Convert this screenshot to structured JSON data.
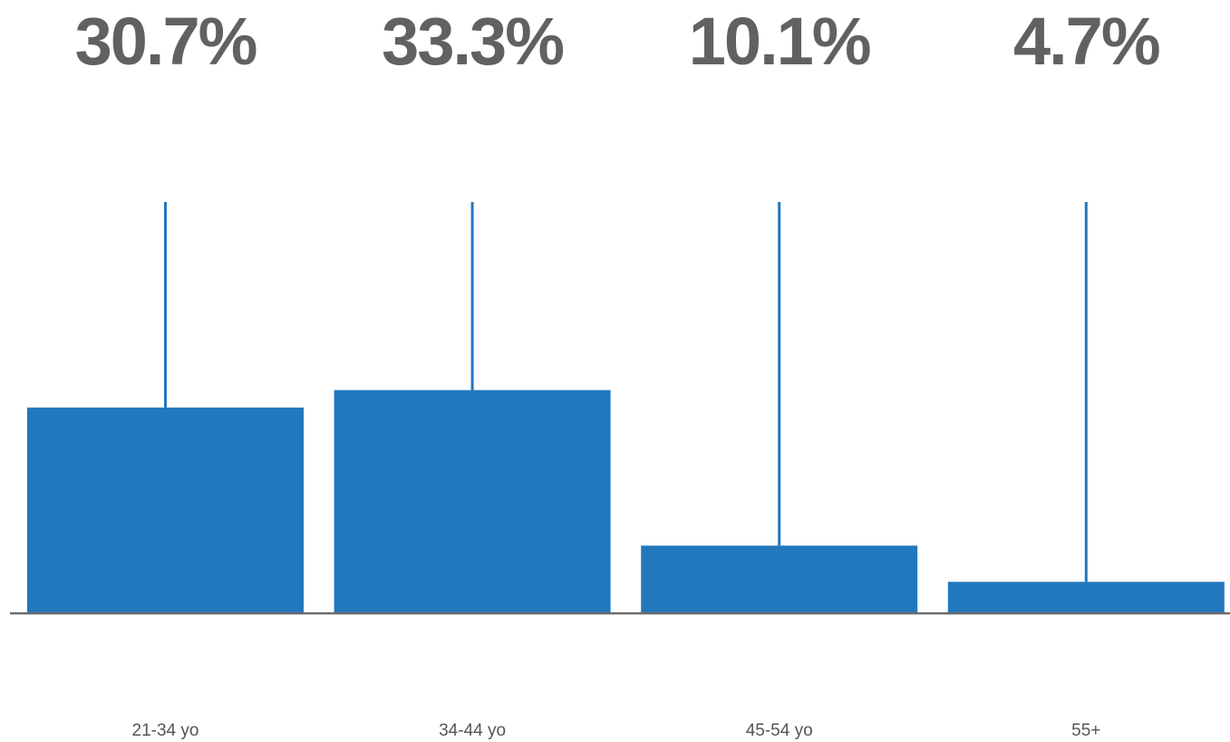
{
  "chart_data": {
    "type": "bar",
    "categories": [
      "21-34 yo",
      "34-44 yo",
      "45-54 yo",
      "55+"
    ],
    "values": [
      30.7,
      33.3,
      10.1,
      4.7
    ],
    "value_labels": [
      "30.7%",
      "33.3%",
      "10.1%",
      "4.7%"
    ],
    "ylim": [
      0,
      60
    ],
    "grid": false,
    "legend": "none",
    "title": "",
    "xlabel": "",
    "ylabel": ""
  },
  "colors": {
    "bar": "#2278bd",
    "value_text": "#616161",
    "category_text": "#555555",
    "axis": "#6b6b6b"
  }
}
